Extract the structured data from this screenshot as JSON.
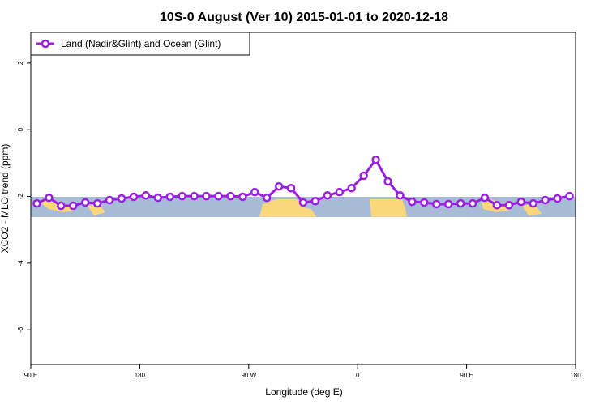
{
  "chart_data": {
    "type": "line",
    "title": "10S-0 August (Ver 10)   2015-01-01 to 2020-12-18",
    "x_label": "Longitude (deg E)",
    "y_label": "XCO2 - MLO trend (ppm)",
    "x": [
      95,
      105,
      115,
      125,
      135,
      145,
      155,
      165,
      175,
      185,
      195,
      205,
      215,
      225,
      235,
      245,
      255,
      265,
      275,
      285,
      295,
      305,
      315,
      325,
      335,
      345,
      355,
      365,
      375,
      385,
      395,
      405,
      415,
      425,
      435,
      445,
      455,
      465,
      475,
      485,
      495,
      505,
      515,
      525,
      535
    ],
    "series": [
      {
        "name": "Land (Nadir&Glint) and Ocean (Glint)",
        "color": "#9b1fe0",
        "values": [
          -2.21,
          -2.04,
          -2.28,
          -2.28,
          -2.18,
          -2.21,
          -2.11,
          -2.06,
          -2.01,
          -1.97,
          -2.04,
          -2.01,
          -1.99,
          -1.99,
          -1.99,
          -1.99,
          -1.99,
          -2.01,
          -1.87,
          -2.04,
          -1.7,
          -1.75,
          -2.18,
          -2.14,
          -1.97,
          -1.87,
          -1.75,
          -1.38,
          -0.9,
          -1.55,
          -1.97,
          -2.16,
          -2.18,
          -2.23,
          -2.23,
          -2.21,
          -2.21,
          -2.04,
          -2.26,
          -2.26,
          -2.16,
          -2.21,
          -2.11,
          -2.06,
          -1.99
        ]
      }
    ],
    "xlim": [
      90,
      540
    ],
    "xticks": [
      {
        "value": 90,
        "label": "90 E"
      },
      {
        "value": 180,
        "label": "180"
      },
      {
        "value": 270,
        "label": "90 W"
      },
      {
        "value": 360,
        "label": "0"
      },
      {
        "value": 450,
        "label": "90 E"
      },
      {
        "value": 540,
        "label": "180"
      }
    ],
    "ylim": [
      -7.04,
      2.92
    ],
    "yticks": [
      2,
      0,
      -2,
      -4,
      -6
    ],
    "legend": "top-left"
  }
}
